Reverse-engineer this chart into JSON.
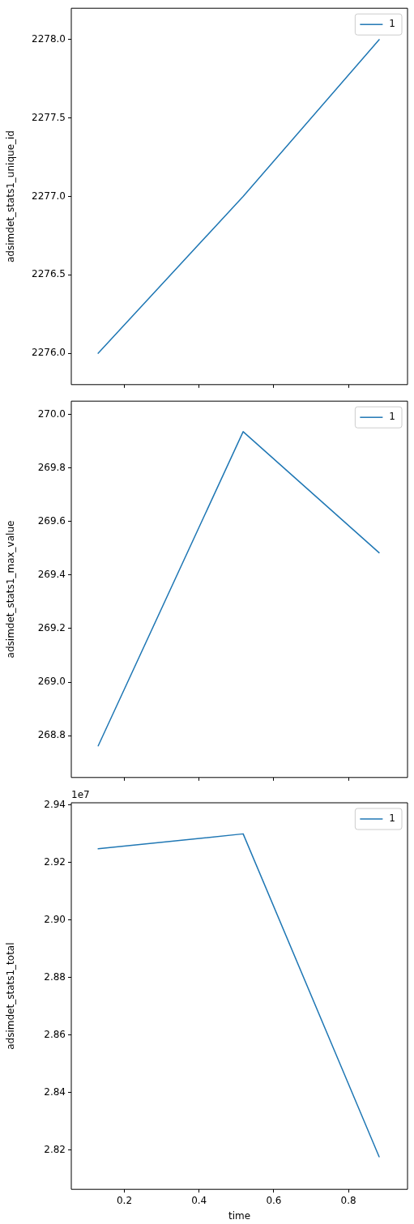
{
  "chart_data": [
    {
      "type": "line",
      "ylabel": "adsimdet_stats1_unique_id",
      "x": [
        0.13,
        0.518,
        0.882
      ],
      "xlim": [
        0.058,
        0.958
      ],
      "xticks": [
        0.2,
        0.4,
        0.6,
        0.8
      ],
      "ylim": [
        2275.8,
        2278.2
      ],
      "yticks": [
        {
          "value": 2276,
          "label": "2276.0"
        },
        2276.5,
        {
          "value": 2277,
          "label": "2277.0"
        },
        2277.5,
        {
          "value": 2278,
          "label": "2278.0"
        }
      ],
      "tick_labels": "y",
      "legend": "top right",
      "marker": "none",
      "line_style": "solid",
      "series": [
        {
          "name": "1",
          "color": "#1f77b4",
          "values": [
            2276,
            2277,
            2278
          ]
        }
      ]
    },
    {
      "type": "line",
      "ylabel": "adsimdet_stats1_max_value",
      "x": [
        0.13,
        0.518,
        0.882
      ],
      "xlim": [
        0.058,
        0.958
      ],
      "xticks": [
        0.2,
        0.4,
        0.6,
        0.8
      ],
      "ylim": [
        268.644,
        270.049
      ],
      "yticks": [
        268.8,
        {
          "value": 269,
          "label": "269.0"
        },
        269.2,
        269.4,
        269.6,
        269.8,
        {
          "value": 270,
          "label": "270.0"
        }
      ],
      "tick_labels": "y",
      "legend": "top right",
      "marker": "none",
      "line_style": "solid",
      "series": [
        {
          "name": "1",
          "color": "#1f77b4",
          "values": [
            268.762,
            269.935,
            269.483
          ]
        }
      ]
    },
    {
      "type": "line",
      "xlabel": "time",
      "ylabel": "adsimdet_stats1_total",
      "annotations": [
        "1e7"
      ],
      "x": [
        0.13,
        0.518,
        0.882
      ],
      "xlim": [
        0.058,
        0.958
      ],
      "xticks": [
        0.2,
        0.4,
        0.6,
        0.8
      ],
      "ylim": [
        2.8064,
        2.9407
      ],
      "yticks": [
        2.82,
        2.84,
        2.86,
        2.88,
        {
          "value": 2.9,
          "label": "2.90"
        },
        2.92,
        2.94
      ],
      "legend": "top right",
      "marker": "none",
      "line_style": "solid",
      "series": [
        {
          "name": "1",
          "color": "#1f77b4",
          "values": [
            2.9247,
            2.9299,
            2.8177
          ]
        }
      ]
    }
  ]
}
